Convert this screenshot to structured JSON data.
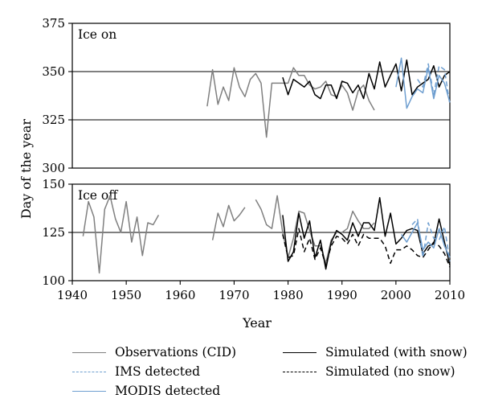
{
  "chart_data": {
    "type": "line",
    "xlabel": "Year",
    "ylabel": "Day of the year",
    "xlim": [
      1940,
      2010
    ],
    "x_ticks": [
      1940,
      1950,
      1960,
      1970,
      1980,
      1990,
      2000,
      2010
    ],
    "grid": false,
    "legend_position": "bottom",
    "panels": [
      {
        "label": "Ice on",
        "ylim": [
          300,
          375
        ],
        "y_ticks": [
          300,
          325,
          350,
          375
        ],
        "reference_lines": [
          325,
          350
        ],
        "series": [
          {
            "name": "Observations (CID)",
            "color": "#808080",
            "dash": "solid",
            "x": [
              1965,
              1966,
              1967,
              1968,
              1969,
              1970,
              1971,
              1972,
              1973,
              1974,
              1975,
              1976,
              1977,
              1978,
              1979,
              1980,
              1981,
              1982,
              1983,
              1984,
              1985,
              1986,
              1987,
              1988,
              1989,
              1990,
              1991,
              1992,
              1993,
              1994,
              1995,
              1996
            ],
            "y": [
              332,
              351,
              333,
              342,
              335,
              352,
              342,
              337,
              346,
              349,
              344,
              316,
              344,
              344,
              344,
              344,
              352,
              348,
              348,
              343,
              341,
              342,
              345,
              338,
              337,
              343,
              339,
              330,
              340,
              343,
              335,
              330
            ]
          },
          {
            "name": "Simulated (with snow)",
            "color": "#000000",
            "dash": "solid",
            "x": [
              1979,
              1980,
              1981,
              1982,
              1983,
              1984,
              1985,
              1986,
              1987,
              1988,
              1989,
              1990,
              1991,
              1992,
              1993,
              1994,
              1995,
              1996,
              1997,
              1998,
              1999,
              2000,
              2001,
              2002,
              2003,
              2004,
              2005,
              2006,
              2007,
              2008,
              2009,
              2010
            ],
            "y": [
              347,
              338,
              346,
              344,
              342,
              345,
              338,
              336,
              343,
              343,
              336,
              345,
              344,
              339,
              343,
              336,
              349,
              341,
              355,
              342,
              348,
              354,
              340,
              356,
              338,
              342,
              344,
              346,
              353,
              342,
              348,
              350
            ]
          },
          {
            "name": "IMS detected",
            "color": "#6f9fd0",
            "dash": "dashed",
            "x": [
              2004,
              2005,
              2006,
              2007,
              2008,
              2009,
              2010
            ],
            "y": [
              346,
              342,
              354,
              338,
              353,
              351,
              333
            ]
          },
          {
            "name": "MODIS detected",
            "color": "#6f9fd0",
            "dash": "solid",
            "x": [
              2000,
              2001,
              2002,
              2003,
              2004,
              2005,
              2006,
              2007,
              2008,
              2009,
              2010
            ],
            "y": [
              342,
              357,
              331,
              337,
              341,
              339,
              352,
              336,
              348,
              344,
              334
            ]
          }
        ]
      },
      {
        "label": "Ice off",
        "ylim": [
          100,
          150
        ],
        "y_ticks": [
          100,
          125,
          150
        ],
        "reference_lines": [
          125
        ],
        "series": [
          {
            "name": "Observations (CID)",
            "color": "#808080",
            "dash": "solid",
            "segments": [
              {
                "x": [
                  1942,
                  1943,
                  1944,
                  1945,
                  1946,
                  1947,
                  1948,
                  1949,
                  1950,
                  1951,
                  1952,
                  1953,
                  1954,
                  1955,
                  1956
                ],
                "y": [
                  123,
                  141,
                  133,
                  104,
                  137,
                  144,
                  132,
                  125,
                  141,
                  120,
                  133,
                  113,
                  130,
                  129,
                  134
                ]
              },
              {
                "x": [
                  1966,
                  1967,
                  1968,
                  1969,
                  1970,
                  1971,
                  1972
                ],
                "y": [
                  121,
                  135,
                  128,
                  139,
                  131,
                  134,
                  138
                ]
              },
              {
                "x": [
                  1974,
                  1975,
                  1976,
                  1977,
                  1978,
                  1979,
                  1980,
                  1981,
                  1982,
                  1983,
                  1984,
                  1985,
                  1986,
                  1987,
                  1988,
                  1989,
                  1990,
                  1991,
                  1992,
                  1993,
                  1994,
                  1995,
                  1996
                ],
                "y": [
                  142,
                  137,
                  129,
                  127,
                  144,
                  125,
                  112,
                  122,
                  136,
                  135,
                  126,
                  118,
                  118,
                  109,
                  121,
                  125,
                  125,
                  127,
                  136,
                  131,
                  127,
                  127,
                  130
                ]
              }
            ]
          },
          {
            "name": "Simulated (with snow)",
            "color": "#000000",
            "dash": "solid",
            "x": [
              1979,
              1980,
              1981,
              1982,
              1983,
              1984,
              1985,
              1986,
              1987,
              1988,
              1989,
              1990,
              1991,
              1992,
              1993,
              1994,
              1995,
              1996,
              1997,
              1998,
              1999,
              2000,
              2001,
              2002,
              2003,
              2004,
              2005,
              2006,
              2007,
              2008,
              2009,
              2010
            ],
            "y": [
              134,
              110,
              115,
              135,
              122,
              131,
              112,
              121,
              106,
              120,
              126,
              124,
              121,
              130,
              123,
              130,
              130,
              126,
              143,
              123,
              135,
              119,
              122,
              126,
              127,
              126,
              114,
              118,
              119,
              132,
              120,
              108
            ]
          },
          {
            "name": "Simulated (no snow)",
            "color": "#000000",
            "dash": "dashed",
            "x": [
              1979,
              1980,
              1981,
              1982,
              1983,
              1984,
              1985,
              1986,
              1987,
              1988,
              1989,
              1990,
              1991,
              1992,
              1993,
              1994,
              1995,
              1996,
              1997,
              1998,
              1999,
              2000,
              2001,
              2002,
              2003,
              2004,
              2005,
              2006,
              2007,
              2008,
              2009,
              2010
            ],
            "y": [
              124,
              112,
              113,
              127,
              115,
              122,
              111,
              117,
              108,
              118,
              123,
              122,
              119,
              124,
              118,
              124,
              122,
              122,
              122,
              118,
              109,
              116,
              116,
              118,
              116,
              113,
              112,
              116,
              120,
              118,
              114,
              107
            ]
          },
          {
            "name": "IMS detected",
            "color": "#6f9fd0",
            "dash": "dashed",
            "x": [
              2003,
              2004,
              2005,
              2006,
              2007,
              2008,
              2009,
              2010
            ],
            "y": [
              129,
              132,
              112,
              130,
              122,
              121,
              128,
              110
            ]
          },
          {
            "name": "MODIS detected",
            "color": "#6f9fd0",
            "dash": "solid",
            "x": [
              2001,
              2002,
              2003,
              2004,
              2005,
              2006,
              2007,
              2008,
              2009,
              2010
            ],
            "y": [
              124,
              120,
              125,
              130,
              116,
              120,
              117,
              127,
              118,
              112
            ]
          }
        ]
      }
    ],
    "legend": [
      {
        "name": "Observations (CID)",
        "color": "#808080",
        "dash": "solid"
      },
      {
        "name": "IMS detected",
        "color": "#6f9fd0",
        "dash": "dashed"
      },
      {
        "name": "MODIS detected",
        "color": "#6f9fd0",
        "dash": "solid"
      },
      {
        "name": "Simulated (with snow)",
        "color": "#000000",
        "dash": "solid"
      },
      {
        "name": "Simulated (no snow)",
        "color": "#000000",
        "dash": "dashed"
      }
    ]
  }
}
